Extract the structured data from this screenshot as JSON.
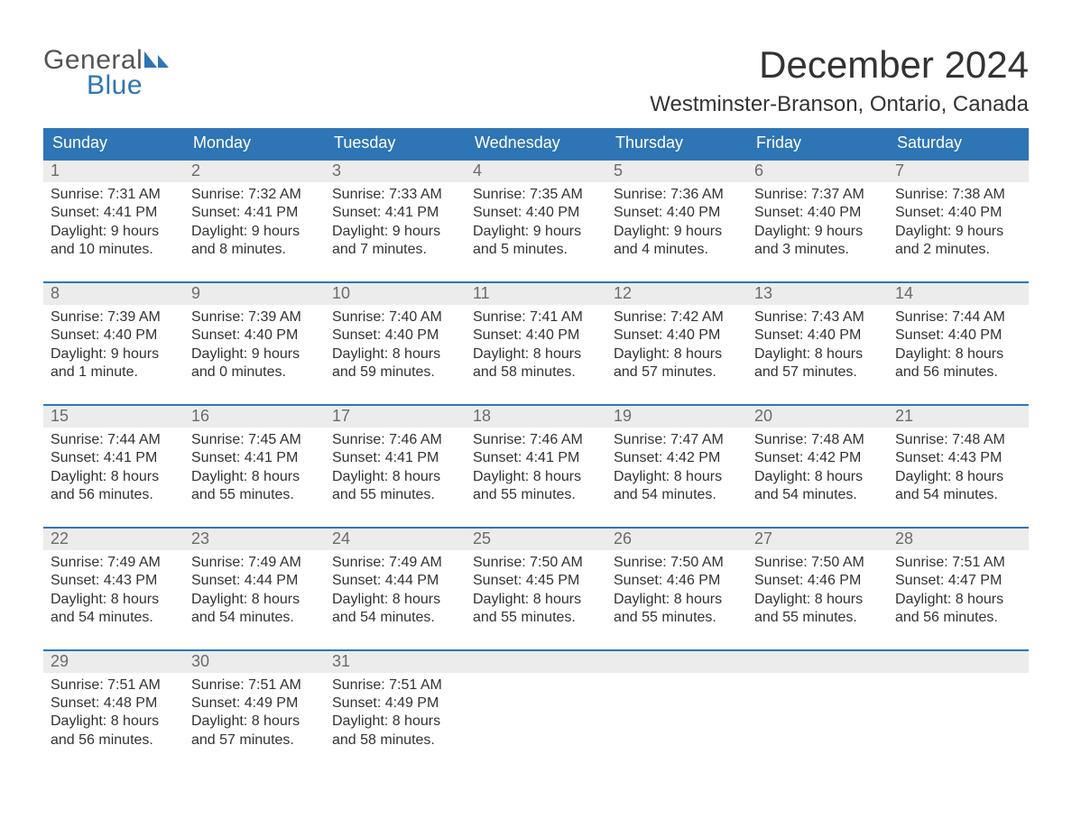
{
  "colors": {
    "brand_blue": "#2e75b6",
    "header_text": "#333333",
    "logo_gray": "#555555",
    "daynum_bg": "#ececec",
    "daynum_text": "#6b6b6b",
    "body_text": "#333333",
    "background": "#ffffff"
  },
  "logo": {
    "line1": "General",
    "line2": "Blue"
  },
  "title": "December 2024",
  "location": "Westminster-Branson, Ontario, Canada",
  "day_names": [
    "Sunday",
    "Monday",
    "Tuesday",
    "Wednesday",
    "Thursday",
    "Friday",
    "Saturday"
  ],
  "weeks": [
    [
      {
        "n": "1",
        "sr": "Sunrise: 7:31 AM",
        "ss": "Sunset: 4:41 PM",
        "d1": "Daylight: 9 hours",
        "d2": "and 10 minutes."
      },
      {
        "n": "2",
        "sr": "Sunrise: 7:32 AM",
        "ss": "Sunset: 4:41 PM",
        "d1": "Daylight: 9 hours",
        "d2": "and 8 minutes."
      },
      {
        "n": "3",
        "sr": "Sunrise: 7:33 AM",
        "ss": "Sunset: 4:41 PM",
        "d1": "Daylight: 9 hours",
        "d2": "and 7 minutes."
      },
      {
        "n": "4",
        "sr": "Sunrise: 7:35 AM",
        "ss": "Sunset: 4:40 PM",
        "d1": "Daylight: 9 hours",
        "d2": "and 5 minutes."
      },
      {
        "n": "5",
        "sr": "Sunrise: 7:36 AM",
        "ss": "Sunset: 4:40 PM",
        "d1": "Daylight: 9 hours",
        "d2": "and 4 minutes."
      },
      {
        "n": "6",
        "sr": "Sunrise: 7:37 AM",
        "ss": "Sunset: 4:40 PM",
        "d1": "Daylight: 9 hours",
        "d2": "and 3 minutes."
      },
      {
        "n": "7",
        "sr": "Sunrise: 7:38 AM",
        "ss": "Sunset: 4:40 PM",
        "d1": "Daylight: 9 hours",
        "d2": "and 2 minutes."
      }
    ],
    [
      {
        "n": "8",
        "sr": "Sunrise: 7:39 AM",
        "ss": "Sunset: 4:40 PM",
        "d1": "Daylight: 9 hours",
        "d2": "and 1 minute."
      },
      {
        "n": "9",
        "sr": "Sunrise: 7:39 AM",
        "ss": "Sunset: 4:40 PM",
        "d1": "Daylight: 9 hours",
        "d2": "and 0 minutes."
      },
      {
        "n": "10",
        "sr": "Sunrise: 7:40 AM",
        "ss": "Sunset: 4:40 PM",
        "d1": "Daylight: 8 hours",
        "d2": "and 59 minutes."
      },
      {
        "n": "11",
        "sr": "Sunrise: 7:41 AM",
        "ss": "Sunset: 4:40 PM",
        "d1": "Daylight: 8 hours",
        "d2": "and 58 minutes."
      },
      {
        "n": "12",
        "sr": "Sunrise: 7:42 AM",
        "ss": "Sunset: 4:40 PM",
        "d1": "Daylight: 8 hours",
        "d2": "and 57 minutes."
      },
      {
        "n": "13",
        "sr": "Sunrise: 7:43 AM",
        "ss": "Sunset: 4:40 PM",
        "d1": "Daylight: 8 hours",
        "d2": "and 57 minutes."
      },
      {
        "n": "14",
        "sr": "Sunrise: 7:44 AM",
        "ss": "Sunset: 4:40 PM",
        "d1": "Daylight: 8 hours",
        "d2": "and 56 minutes."
      }
    ],
    [
      {
        "n": "15",
        "sr": "Sunrise: 7:44 AM",
        "ss": "Sunset: 4:41 PM",
        "d1": "Daylight: 8 hours",
        "d2": "and 56 minutes."
      },
      {
        "n": "16",
        "sr": "Sunrise: 7:45 AM",
        "ss": "Sunset: 4:41 PM",
        "d1": "Daylight: 8 hours",
        "d2": "and 55 minutes."
      },
      {
        "n": "17",
        "sr": "Sunrise: 7:46 AM",
        "ss": "Sunset: 4:41 PM",
        "d1": "Daylight: 8 hours",
        "d2": "and 55 minutes."
      },
      {
        "n": "18",
        "sr": "Sunrise: 7:46 AM",
        "ss": "Sunset: 4:41 PM",
        "d1": "Daylight: 8 hours",
        "d2": "and 55 minutes."
      },
      {
        "n": "19",
        "sr": "Sunrise: 7:47 AM",
        "ss": "Sunset: 4:42 PM",
        "d1": "Daylight: 8 hours",
        "d2": "and 54 minutes."
      },
      {
        "n": "20",
        "sr": "Sunrise: 7:48 AM",
        "ss": "Sunset: 4:42 PM",
        "d1": "Daylight: 8 hours",
        "d2": "and 54 minutes."
      },
      {
        "n": "21",
        "sr": "Sunrise: 7:48 AM",
        "ss": "Sunset: 4:43 PM",
        "d1": "Daylight: 8 hours",
        "d2": "and 54 minutes."
      }
    ],
    [
      {
        "n": "22",
        "sr": "Sunrise: 7:49 AM",
        "ss": "Sunset: 4:43 PM",
        "d1": "Daylight: 8 hours",
        "d2": "and 54 minutes."
      },
      {
        "n": "23",
        "sr": "Sunrise: 7:49 AM",
        "ss": "Sunset: 4:44 PM",
        "d1": "Daylight: 8 hours",
        "d2": "and 54 minutes."
      },
      {
        "n": "24",
        "sr": "Sunrise: 7:49 AM",
        "ss": "Sunset: 4:44 PM",
        "d1": "Daylight: 8 hours",
        "d2": "and 54 minutes."
      },
      {
        "n": "25",
        "sr": "Sunrise: 7:50 AM",
        "ss": "Sunset: 4:45 PM",
        "d1": "Daylight: 8 hours",
        "d2": "and 55 minutes."
      },
      {
        "n": "26",
        "sr": "Sunrise: 7:50 AM",
        "ss": "Sunset: 4:46 PM",
        "d1": "Daylight: 8 hours",
        "d2": "and 55 minutes."
      },
      {
        "n": "27",
        "sr": "Sunrise: 7:50 AM",
        "ss": "Sunset: 4:46 PM",
        "d1": "Daylight: 8 hours",
        "d2": "and 55 minutes."
      },
      {
        "n": "28",
        "sr": "Sunrise: 7:51 AM",
        "ss": "Sunset: 4:47 PM",
        "d1": "Daylight: 8 hours",
        "d2": "and 56 minutes."
      }
    ],
    [
      {
        "n": "29",
        "sr": "Sunrise: 7:51 AM",
        "ss": "Sunset: 4:48 PM",
        "d1": "Daylight: 8 hours",
        "d2": "and 56 minutes."
      },
      {
        "n": "30",
        "sr": "Sunrise: 7:51 AM",
        "ss": "Sunset: 4:49 PM",
        "d1": "Daylight: 8 hours",
        "d2": "and 57 minutes."
      },
      {
        "n": "31",
        "sr": "Sunrise: 7:51 AM",
        "ss": "Sunset: 4:49 PM",
        "d1": "Daylight: 8 hours",
        "d2": "and 58 minutes."
      },
      null,
      null,
      null,
      null
    ]
  ]
}
